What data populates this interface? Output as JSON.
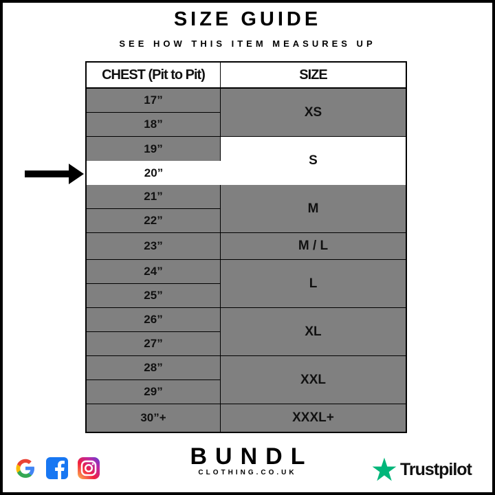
{
  "title": "SIZE GUIDE",
  "subtitle": "SEE HOW THIS ITEM MEASURES UP",
  "table": {
    "headers": [
      "CHEST (Pit to Pit)",
      "SIZE"
    ],
    "chest": [
      "17”",
      "18”",
      "19”",
      "20”",
      "21”",
      "22”",
      "23”",
      "24”",
      "25”",
      "26”",
      "27”",
      "28”",
      "29”",
      "30”+"
    ],
    "sizes": [
      "XS",
      "S",
      "M",
      "M / L",
      "L",
      "XL",
      "XXL",
      "XXXL+"
    ],
    "highlighted_chest": "20”",
    "highlighted_size": "S"
  },
  "brand": {
    "name": "BUNDL",
    "domain": "CLOTHING.CO.UK"
  },
  "trustpilot": "Trustpilot",
  "colors": {
    "row_fill": "#808080",
    "highlight": "#ffffff",
    "trustpilot_green": "#00b67a"
  }
}
